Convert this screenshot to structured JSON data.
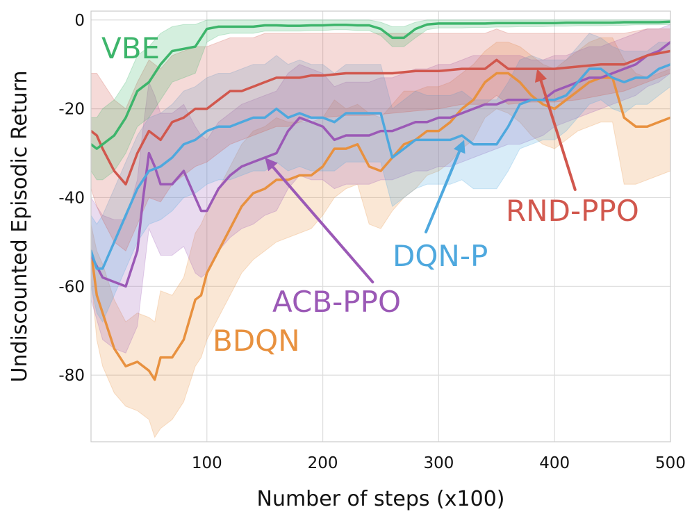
{
  "chart_data": {
    "type": "line",
    "title": "",
    "xlabel": "Number of steps (x100)",
    "ylabel": "Undiscounted Episodic Return",
    "xlim": [
      0,
      500
    ],
    "ylim": [
      -95,
      2
    ],
    "xticks": [
      100,
      200,
      300,
      400,
      500
    ],
    "yticks": [
      0,
      -20,
      -40,
      -60,
      -80
    ],
    "xtick_labels": [
      "100",
      "200",
      "300",
      "400",
      "500"
    ],
    "ytick_labels": [
      "0",
      "-20",
      "-40",
      "-60",
      "-80"
    ],
    "grid": true,
    "series": [
      {
        "name": "BDQN",
        "color": "#E8913F",
        "x": [
          0,
          5,
          10,
          20,
          30,
          40,
          50,
          55,
          60,
          70,
          80,
          90,
          95,
          100,
          110,
          120,
          130,
          140,
          150,
          160,
          170,
          180,
          190,
          200,
          210,
          220,
          230,
          240,
          250,
          260,
          270,
          280,
          290,
          300,
          310,
          320,
          330,
          340,
          350,
          360,
          370,
          380,
          390,
          400,
          410,
          420,
          430,
          440,
          450,
          460,
          470,
          480,
          490,
          500
        ],
        "mean": [
          -52,
          -62,
          -66,
          -74,
          -78,
          -77,
          -79,
          -81,
          -76,
          -76,
          -72,
          -63,
          -62,
          -57,
          -52,
          -47,
          -42,
          -39,
          -38,
          -36,
          -36,
          -35,
          -35,
          -33,
          -29,
          -29,
          -28,
          -33,
          -34,
          -31,
          -28,
          -27,
          -25,
          -25,
          -23,
          -20,
          -18,
          -14,
          -12,
          -12,
          -14,
          -17,
          -19,
          -20,
          -18,
          -16,
          -14,
          -13,
          -13,
          -22,
          -24,
          -24,
          -23,
          -22
        ],
        "lower": [
          -58,
          -72,
          -78,
          -84,
          -87,
          -88,
          -90,
          -94,
          -92,
          -90,
          -86,
          -78,
          -76,
          -72,
          -67,
          -62,
          -57,
          -54,
          -52,
          -50,
          -49,
          -48,
          -47,
          -44,
          -40,
          -38,
          -37,
          -46,
          -47,
          -43,
          -40,
          -38,
          -35,
          -34,
          -32,
          -29,
          -27,
          -22,
          -20,
          -21,
          -23,
          -26,
          -28,
          -29,
          -27,
          -25,
          -24,
          -23,
          -23,
          -37,
          -37,
          -36,
          -35,
          -34
        ],
        "upper": [
          -46,
          -52,
          -55,
          -63,
          -68,
          -66,
          -67,
          -68,
          -61,
          -62,
          -58,
          -48,
          -46,
          -43,
          -38,
          -33,
          -28,
          -25,
          -24,
          -22,
          -23,
          -23,
          -23,
          -22,
          -18,
          -20,
          -19,
          -21,
          -22,
          -19,
          -16,
          -16,
          -15,
          -15,
          -14,
          -12,
          -10,
          -7,
          -5,
          -5,
          -6,
          -8,
          -10,
          -11,
          -9,
          -7,
          -5,
          -4,
          -4,
          -9,
          -12,
          -13,
          -12,
          -11
        ]
      },
      {
        "name": "ACB-PPO",
        "color": "#9B59B6",
        "x": [
          0,
          10,
          20,
          30,
          40,
          45,
          50,
          55,
          60,
          70,
          80,
          90,
          95,
          100,
          110,
          120,
          130,
          140,
          150,
          160,
          170,
          180,
          190,
          200,
          210,
          220,
          230,
          240,
          250,
          260,
          270,
          280,
          290,
          300,
          310,
          320,
          330,
          340,
          350,
          360,
          370,
          380,
          390,
          400,
          410,
          420,
          430,
          440,
          450,
          460,
          470,
          480,
          490,
          500
        ],
        "mean": [
          -53,
          -58,
          -59,
          -60,
          -52,
          -40,
          -30,
          -33,
          -37,
          -37,
          -34,
          -40,
          -43,
          -43,
          -38,
          -35,
          -33,
          -32,
          -31,
          -30,
          -25,
          -22,
          -23,
          -24,
          -27,
          -26,
          -26,
          -26,
          -25,
          -25,
          -24,
          -23,
          -23,
          -22,
          -22,
          -21,
          -20,
          -19,
          -19,
          -18,
          -18,
          -18,
          -18,
          -16,
          -15,
          -14,
          -13,
          -13,
          -12,
          -11,
          -10,
          -8,
          -7,
          -5
        ],
        "lower": [
          -63,
          -72,
          -74,
          -75,
          -69,
          -58,
          -47,
          -50,
          -53,
          -53,
          -51,
          -57,
          -58,
          -57,
          -52,
          -49,
          -47,
          -46,
          -44,
          -43,
          -38,
          -35,
          -36,
          -36,
          -38,
          -37,
          -37,
          -37,
          -36,
          -36,
          -35,
          -34,
          -34,
          -33,
          -33,
          -32,
          -31,
          -30,
          -29,
          -28,
          -28,
          -27,
          -26,
          -24,
          -23,
          -22,
          -21,
          -20,
          -19,
          -18,
          -17,
          -15,
          -14,
          -12
        ],
        "upper": [
          -40,
          -44,
          -45,
          -45,
          -36,
          -24,
          -14,
          -17,
          -21,
          -21,
          -19,
          -24,
          -26,
          -27,
          -23,
          -21,
          -19,
          -18,
          -17,
          -16,
          -12,
          -10,
          -11,
          -12,
          -15,
          -14,
          -14,
          -14,
          -13,
          -13,
          -12,
          -11,
          -11,
          -10,
          -10,
          -9,
          -8,
          -8,
          -8,
          -8,
          -8,
          -9,
          -9,
          -8,
          -8,
          -7,
          -6,
          -6,
          -5,
          -4,
          -3,
          -2,
          -2,
          -1
        ]
      },
      {
        "name": "DQN-P",
        "color": "#4EA8DE",
        "x": [
          0,
          5,
          10,
          20,
          30,
          40,
          50,
          60,
          70,
          80,
          90,
          100,
          110,
          120,
          130,
          140,
          150,
          160,
          170,
          180,
          190,
          200,
          210,
          220,
          230,
          240,
          250,
          260,
          270,
          280,
          290,
          300,
          310,
          320,
          330,
          340,
          350,
          360,
          370,
          380,
          390,
          400,
          410,
          420,
          430,
          440,
          450,
          460,
          470,
          480,
          490,
          500
        ],
        "mean": [
          -52,
          -56,
          -56,
          -50,
          -44,
          -38,
          -34,
          -33,
          -31,
          -28,
          -27,
          -25,
          -24,
          -24,
          -23,
          -22,
          -22,
          -20,
          -22,
          -21,
          -22,
          -22,
          -23,
          -21,
          -21,
          -21,
          -21,
          -31,
          -29,
          -27,
          -27,
          -27,
          -27,
          -26,
          -28,
          -28,
          -28,
          -24,
          -19,
          -18,
          -18,
          -18,
          -17,
          -14,
          -11,
          -11,
          -13,
          -14,
          -13,
          -13,
          -11,
          -10
        ],
        "lower": [
          -60,
          -66,
          -68,
          -62,
          -56,
          -50,
          -46,
          -45,
          -43,
          -40,
          -39,
          -37,
          -36,
          -36,
          -35,
          -34,
          -34,
          -32,
          -34,
          -33,
          -34,
          -34,
          -34,
          -32,
          -32,
          -32,
          -32,
          -42,
          -40,
          -38,
          -37,
          -37,
          -37,
          -36,
          -38,
          -38,
          -38,
          -34,
          -29,
          -28,
          -27,
          -27,
          -25,
          -22,
          -19,
          -18,
          -20,
          -21,
          -19,
          -19,
          -17,
          -15
        ],
        "upper": [
          -44,
          -46,
          -44,
          -38,
          -32,
          -26,
          -22,
          -21,
          -19,
          -16,
          -15,
          -13,
          -12,
          -12,
          -11,
          -10,
          -10,
          -8,
          -10,
          -9,
          -10,
          -10,
          -12,
          -10,
          -10,
          -10,
          -10,
          -20,
          -18,
          -16,
          -17,
          -17,
          -17,
          -16,
          -18,
          -18,
          -18,
          -14,
          -9,
          -8,
          -9,
          -9,
          -9,
          -6,
          -3,
          -4,
          -6,
          -7,
          -7,
          -7,
          -5,
          -5
        ]
      },
      {
        "name": "RND-PPO",
        "color": "#D1574D",
        "x": [
          0,
          5,
          10,
          20,
          30,
          40,
          50,
          60,
          70,
          80,
          90,
          100,
          110,
          120,
          130,
          140,
          150,
          160,
          170,
          180,
          190,
          200,
          220,
          240,
          260,
          280,
          300,
          320,
          340,
          350,
          360,
          380,
          400,
          420,
          440,
          460,
          480,
          500
        ],
        "mean": [
          -25,
          -26,
          -29,
          -34,
          -37,
          -30,
          -25,
          -27,
          -23,
          -22,
          -20,
          -20,
          -18,
          -16,
          -16,
          -15,
          -14,
          -13,
          -13,
          -13,
          -12.5,
          -12.5,
          -12,
          -12,
          -12,
          -11.5,
          -11.5,
          -11,
          -11,
          -9,
          -11,
          -11,
          -11,
          -10.5,
          -10,
          -10,
          -8,
          -7
        ],
        "lower": [
          -38,
          -42,
          -45,
          -50,
          -52,
          -46,
          -40,
          -41,
          -37,
          -35,
          -33,
          -32,
          -30,
          -28,
          -27,
          -26,
          -25,
          -24,
          -24,
          -23,
          -22,
          -22,
          -21.5,
          -21.5,
          -21,
          -20.5,
          -20,
          -19,
          -19,
          -17,
          -19,
          -18.5,
          -18.5,
          -18,
          -17,
          -16,
          -14,
          -12
        ],
        "upper": [
          -12,
          -12,
          -14,
          -18,
          -20,
          -14,
          -9,
          -11,
          -8,
          -7,
          -6,
          -6,
          -5,
          -4,
          -4,
          -4,
          -3,
          -3,
          -3,
          -3,
          -3,
          -3,
          -3,
          -3,
          -3,
          -3,
          -3,
          -3,
          -3,
          -2,
          -3,
          -3,
          -3,
          -3,
          -3,
          -3,
          -2,
          -2
        ]
      },
      {
        "name": "VBE",
        "color": "#3DB56B",
        "x": [
          0,
          5,
          10,
          20,
          30,
          40,
          50,
          60,
          70,
          80,
          90,
          100,
          110,
          120,
          130,
          140,
          150,
          160,
          170,
          180,
          190,
          200,
          210,
          220,
          230,
          240,
          250,
          260,
          270,
          280,
          290,
          300,
          310,
          320,
          330,
          340,
          350,
          360,
          370,
          380,
          390,
          400,
          410,
          420,
          430,
          440,
          450,
          460,
          470,
          480,
          490,
          500
        ],
        "mean": [
          -28,
          -29,
          -28,
          -26,
          -22,
          -16,
          -14,
          -10,
          -7,
          -6.5,
          -6,
          -2,
          -1.5,
          -1.5,
          -1.5,
          -1.5,
          -1.2,
          -1.2,
          -1.3,
          -1.3,
          -1.2,
          -1.2,
          -1.1,
          -1.1,
          -1.2,
          -1.2,
          -2,
          -4,
          -4,
          -2,
          -1,
          -0.8,
          -0.8,
          -0.8,
          -0.8,
          -0.8,
          -0.7,
          -0.7,
          -0.7,
          -0.7,
          -0.7,
          -0.7,
          -0.6,
          -0.6,
          -0.6,
          -0.6,
          -0.6,
          -0.5,
          -0.5,
          -0.5,
          -0.5,
          -0.4
        ],
        "lower": [
          -34,
          -36,
          -36,
          -34,
          -30,
          -24,
          -22,
          -18,
          -14,
          -13,
          -12,
          -5,
          -3.5,
          -3,
          -3,
          -3,
          -2.5,
          -2.5,
          -2.5,
          -2.5,
          -2.4,
          -2.4,
          -2.2,
          -2.2,
          -2.4,
          -2.4,
          -3.5,
          -6,
          -6,
          -4,
          -2.2,
          -1.8,
          -1.8,
          -1.8,
          -1.7,
          -1.7,
          -1.6,
          -1.6,
          -1.5,
          -1.5,
          -1.5,
          -1.4,
          -1.4,
          -1.3,
          -1.3,
          -1.3,
          -1.2,
          -1.2,
          -1.1,
          -1.1,
          -1.1,
          -1
        ],
        "upper": [
          -22,
          -22,
          -20,
          -18,
          -14,
          -8,
          -6,
          -3,
          -1.5,
          -1,
          -1,
          0,
          0,
          0,
          0,
          0,
          0,
          0,
          0,
          0,
          0,
          0,
          0,
          0,
          0,
          0,
          -0.5,
          -1.5,
          -1.5,
          -0.5,
          0,
          0,
          0,
          0,
          0,
          0,
          0,
          0,
          0,
          0,
          0,
          0,
          0,
          0,
          0,
          0,
          0,
          0,
          0,
          0,
          0,
          0
        ]
      }
    ],
    "annotations": [
      {
        "text": "VBE",
        "series": "VBE"
      },
      {
        "text": "BDQN",
        "series": "BDQN"
      },
      {
        "text": "ACB-PPO",
        "series": "ACB-PPO",
        "arrow_to": [
          150,
          -31
        ]
      },
      {
        "text": "DQN-P",
        "series": "DQN-P",
        "arrow_to": [
          322,
          -27
        ]
      },
      {
        "text": "RND-PPO",
        "series": "RND-PPO",
        "arrow_to": [
          385,
          -11
        ]
      }
    ]
  }
}
